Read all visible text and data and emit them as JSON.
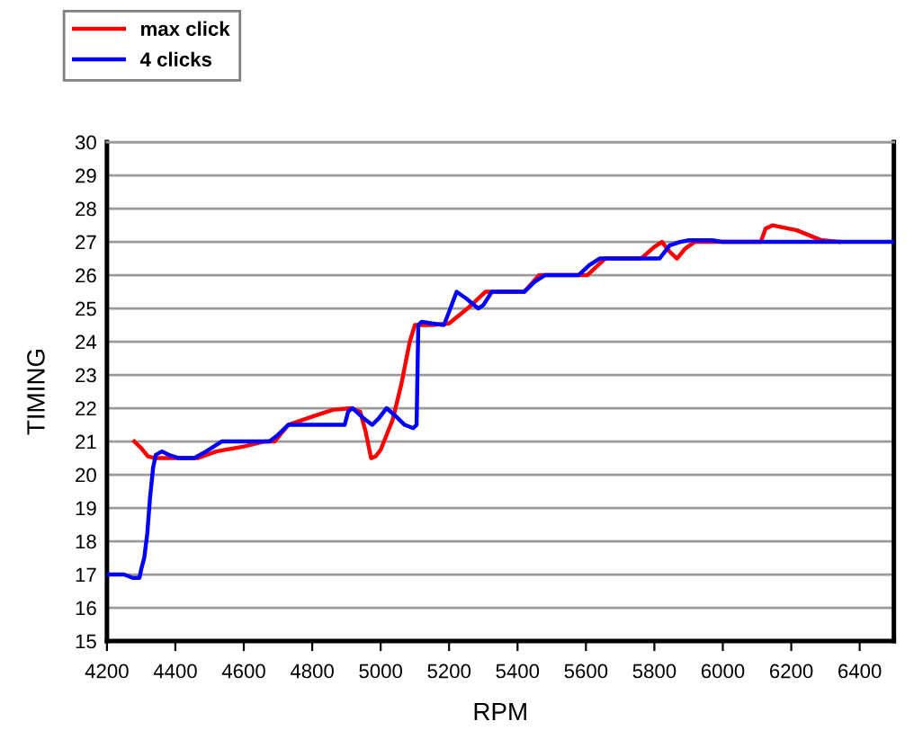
{
  "chart_data": {
    "type": "line",
    "xlabel": "RPM",
    "ylabel": "TIMING",
    "xlim": [
      4200,
      6500
    ],
    "xticks": [
      4200,
      4400,
      4600,
      4800,
      5000,
      5200,
      5400,
      5600,
      5800,
      6000,
      6200,
      6400
    ],
    "ylim": [
      15,
      30
    ],
    "yticks": [
      15,
      16,
      17,
      18,
      19,
      20,
      21,
      22,
      23,
      24,
      25,
      26,
      27,
      28,
      29,
      30
    ],
    "grid": "y",
    "legend": "top left",
    "series": [
      {
        "name": "max click",
        "color": "#ff0000",
        "x": [
          4280,
          4300,
          4320,
          4340,
          4400,
          4465,
          4520,
          4600,
          4660,
          4690,
          4730,
          4800,
          4860,
          4912,
          4940,
          4956,
          4972,
          4985,
          5000,
          5035,
          5060,
          5085,
          5100,
          5150,
          5200,
          5254,
          5306,
          5420,
          5463,
          5604,
          5656,
          5761,
          5800,
          5822,
          5845,
          5866,
          5890,
          5918,
          6111,
          6125,
          6146,
          6216,
          6286,
          6340
        ],
        "values": [
          21.0,
          20.8,
          20.55,
          20.5,
          20.5,
          20.5,
          20.7,
          20.85,
          21.0,
          21.0,
          21.5,
          21.75,
          21.95,
          22.0,
          21.9,
          21.3,
          20.5,
          20.55,
          20.75,
          21.65,
          22.7,
          24.0,
          24.5,
          24.5,
          24.55,
          25.0,
          25.5,
          25.5,
          26.0,
          26.0,
          26.5,
          26.5,
          26.85,
          27.0,
          26.7,
          26.5,
          26.8,
          27.0,
          27.0,
          27.4,
          27.5,
          27.35,
          27.06,
          27.0
        ]
      },
      {
        "name": "4 clicks",
        "color": "#0000ff",
        "x": [
          4200,
          4250,
          4275,
          4295,
          4300,
          4309,
          4318,
          4326,
          4335,
          4343,
          4361,
          4380,
          4410,
          4455,
          4490,
          4535,
          4675,
          4700,
          4730,
          4895,
          4905,
          4918,
          4950,
          4975,
          4995,
          5017,
          5040,
          5070,
          5095,
          5105,
          5110,
          5120,
          5150,
          5185,
          5200,
          5222,
          5250,
          5285,
          5300,
          5325,
          5420,
          5450,
          5480,
          5578,
          5610,
          5640,
          5815,
          5845,
          5875,
          5900,
          5970,
          6000,
          6500
        ],
        "values": [
          17.0,
          17.0,
          16.9,
          16.9,
          17.15,
          17.5,
          18.24,
          19.32,
          20.22,
          20.6,
          20.7,
          20.6,
          20.5,
          20.5,
          20.7,
          21.0,
          21.0,
          21.2,
          21.5,
          21.5,
          21.9,
          22.0,
          21.7,
          21.5,
          21.7,
          22.0,
          21.8,
          21.5,
          21.4,
          21.5,
          24.5,
          24.6,
          24.55,
          24.5,
          24.9,
          25.5,
          25.3,
          25.0,
          25.1,
          25.5,
          25.5,
          25.8,
          26.0,
          26.0,
          26.3,
          26.5,
          26.5,
          26.9,
          27.0,
          27.05,
          27.05,
          27.0,
          27.0
        ]
      }
    ]
  }
}
